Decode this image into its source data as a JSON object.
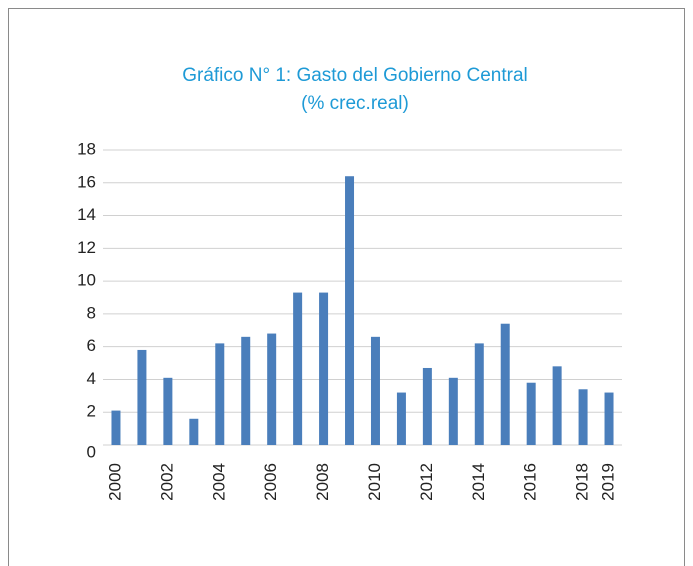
{
  "chart_data": {
    "type": "bar",
    "title": [
      "Gráfico N° 1: Gasto del Gobierno Central",
      "(% crec.real)"
    ],
    "categories": [
      "2000",
      null,
      "2002",
      null,
      "2004",
      null,
      "2006",
      null,
      "2008",
      null,
      "2010",
      null,
      "2012",
      null,
      "2014",
      null,
      "2016",
      null,
      "2018",
      "2019"
    ],
    "values": [
      2.1,
      5.8,
      4.1,
      1.6,
      6.2,
      6.6,
      6.8,
      9.3,
      9.3,
      16.4,
      6.6,
      3.2,
      4.7,
      4.1,
      6.2,
      7.4,
      3.8,
      4.8,
      3.4,
      3.2
    ],
    "color": "#4a7ebb",
    "ylim": [
      0,
      18
    ],
    "yticks": [
      0,
      2,
      4,
      6,
      8,
      10,
      12,
      14,
      16,
      18
    ],
    "grid": true
  }
}
